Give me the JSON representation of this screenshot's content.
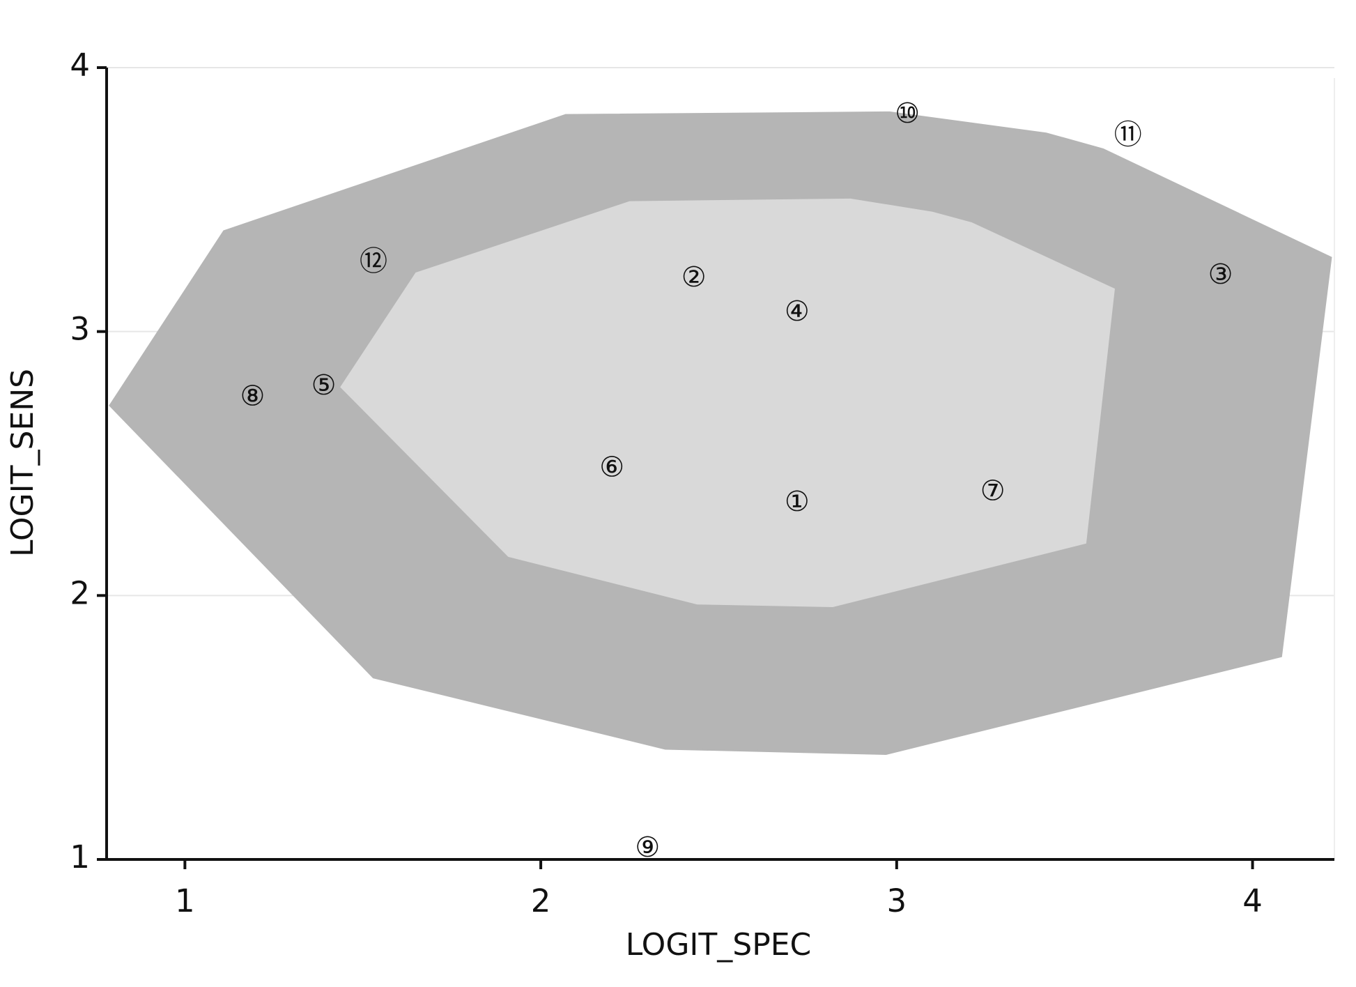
{
  "chart_data": {
    "type": "scatter",
    "x_label": "LOGIT_SPEC",
    "y_label": "LOGIT_SENS",
    "xlim": [
      0.78,
      4.23
    ],
    "ylim": [
      1,
      4
    ],
    "xticks": [
      1,
      2,
      3,
      4
    ],
    "yticks": [
      1,
      2,
      3,
      4
    ],
    "grid": true,
    "fence": {
      "color": "#b5b5b5",
      "x": [
        1.11,
        2.07,
        2.98,
        3.42,
        3.58,
        4.22,
        4.08,
        2.97,
        2.35,
        1.53,
        0.79
      ],
      "y": [
        3.38,
        3.82,
        3.83,
        3.75,
        3.69,
        3.28,
        1.77,
        1.4,
        1.42,
        1.69,
        2.72
      ]
    },
    "bag": {
      "color": "#d9d9d9",
      "x": [
        1.65,
        2.25,
        2.87,
        3.1,
        3.21,
        3.61,
        3.53,
        2.82,
        2.44,
        1.91,
        1.44
      ],
      "y": [
        3.22,
        3.49,
        3.5,
        3.45,
        3.41,
        3.16,
        2.2,
        1.96,
        1.97,
        2.15,
        2.79
      ]
    },
    "points": {
      "labels": [
        "①",
        "②",
        "③",
        "④",
        "⑤",
        "⑥",
        "⑦",
        "⑧",
        "⑨",
        "⑩",
        "⑪",
        "⑫"
      ],
      "x": [
        2.72,
        2.43,
        3.91,
        2.72,
        1.39,
        2.2,
        3.27,
        1.19,
        2.3,
        3.03,
        3.65,
        1.53
      ],
      "y": [
        2.35,
        3.2,
        3.21,
        3.07,
        2.79,
        2.48,
        2.39,
        2.75,
        1.04,
        3.82,
        3.74,
        3.26
      ]
    }
  }
}
